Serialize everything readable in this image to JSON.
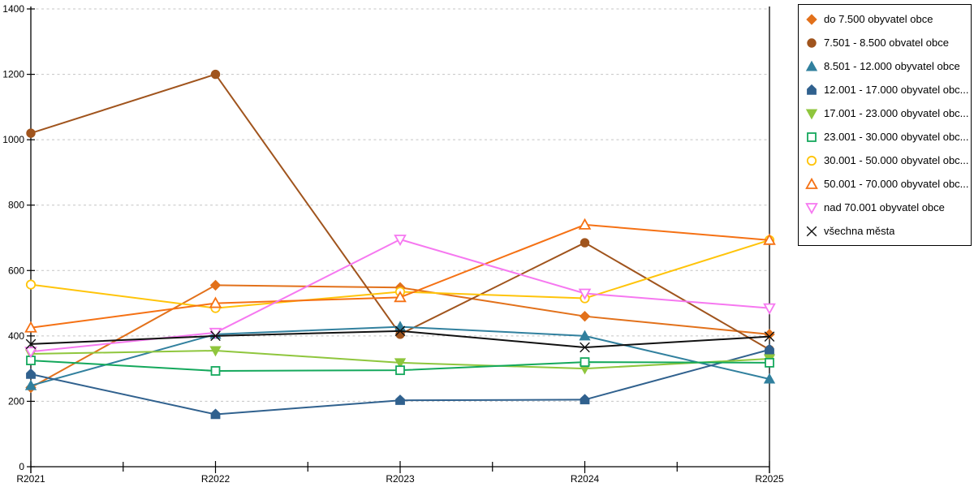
{
  "chart_data": {
    "type": "line",
    "title": "",
    "xlabel": "",
    "ylabel": "",
    "categories": [
      "R2021",
      "R2022",
      "R2023",
      "R2024",
      "R2025"
    ],
    "y_ticks": [
      0,
      200,
      400,
      600,
      800,
      1000,
      1200,
      1400
    ],
    "ylim": [
      0,
      1400
    ],
    "grid": "horizontal-dashed",
    "legend_position": "right",
    "axis_color": "#000000",
    "gridline_color": "#c4c4c4",
    "series": [
      {
        "name": "do 7.500 obyvatel obce",
        "marker": "diamond",
        "marker_style": "filled",
        "color": "#E2711B",
        "values": [
          242,
          555,
          548,
          460,
          405
        ]
      },
      {
        "name": "7.501 - 8.500 obvatel obce",
        "marker": "circle",
        "marker_style": "filled",
        "color": "#A0541D",
        "values": [
          1020,
          1200,
          405,
          685,
          358
        ]
      },
      {
        "name": "8.501 - 12.000 obyvatel obce",
        "marker": "triangle-up",
        "marker_style": "filled",
        "color": "#31809E",
        "values": [
          248,
          405,
          428,
          400,
          268
        ]
      },
      {
        "name": "12.001 - 17.000 obyvatel obc...",
        "marker": "pentagon",
        "marker_style": "filled",
        "color": "#30618E",
        "values": [
          283,
          160,
          203,
          205,
          358
        ]
      },
      {
        "name": "17.001 - 23.000 obyvatel obc...",
        "marker": "triangle-down",
        "marker_style": "filled",
        "color": "#8FC63D",
        "values": [
          345,
          355,
          318,
          300,
          330
        ]
      },
      {
        "name": "23.001 - 30.000 obyvatel obc...",
        "marker": "square",
        "marker_style": "hollow",
        "color": "#14A85C",
        "values": [
          325,
          293,
          295,
          320,
          318
        ]
      },
      {
        "name": "30.001 - 50.000 obyvatel obc...",
        "marker": "circle",
        "marker_style": "hollow",
        "color": "#FFC40A",
        "values": [
          557,
          485,
          535,
          515,
          693
        ]
      },
      {
        "name": "50.001 - 70.000 obyvatel obc...",
        "marker": "triangle-up",
        "marker_style": "hollow",
        "color": "#F57114",
        "values": [
          425,
          500,
          518,
          740,
          693
        ]
      },
      {
        "name": "nad 70.001 obyvatel obce",
        "marker": "triangle-down",
        "marker_style": "hollow",
        "color": "#F678F0",
        "values": [
          352,
          410,
          695,
          530,
          485
        ]
      },
      {
        "name": "všechna města",
        "marker": "x-cross",
        "marker_style": "stroke",
        "color": "#111111",
        "values": [
          375,
          400,
          415,
          365,
          398
        ]
      }
    ]
  }
}
